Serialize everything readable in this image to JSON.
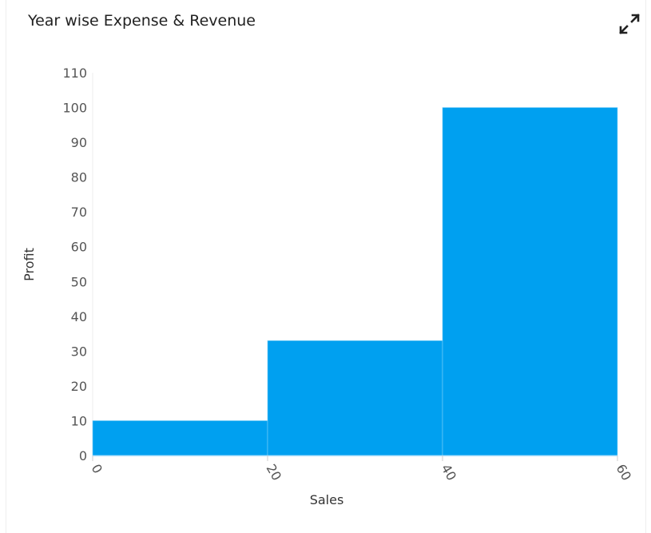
{
  "title": "Year wise Expense & Revenue",
  "icons": {
    "expand": "expand-arrows-icon"
  },
  "chart_data": {
    "type": "bar",
    "subtype": "histogram",
    "title": "Year wise Expense & Revenue",
    "xlabel": "Sales",
    "ylabel": "Profit",
    "bins": [
      [
        0,
        20
      ],
      [
        20,
        40
      ],
      [
        40,
        60
      ]
    ],
    "values": [
      10,
      33,
      100
    ],
    "xticks": [
      0,
      20,
      40,
      60
    ],
    "yticks": [
      0,
      10,
      20,
      30,
      40,
      50,
      60,
      70,
      80,
      90,
      100,
      110
    ],
    "xlim": [
      0,
      60
    ],
    "ylim": [
      0,
      110
    ],
    "grid": false,
    "color": "#00a0f0"
  }
}
